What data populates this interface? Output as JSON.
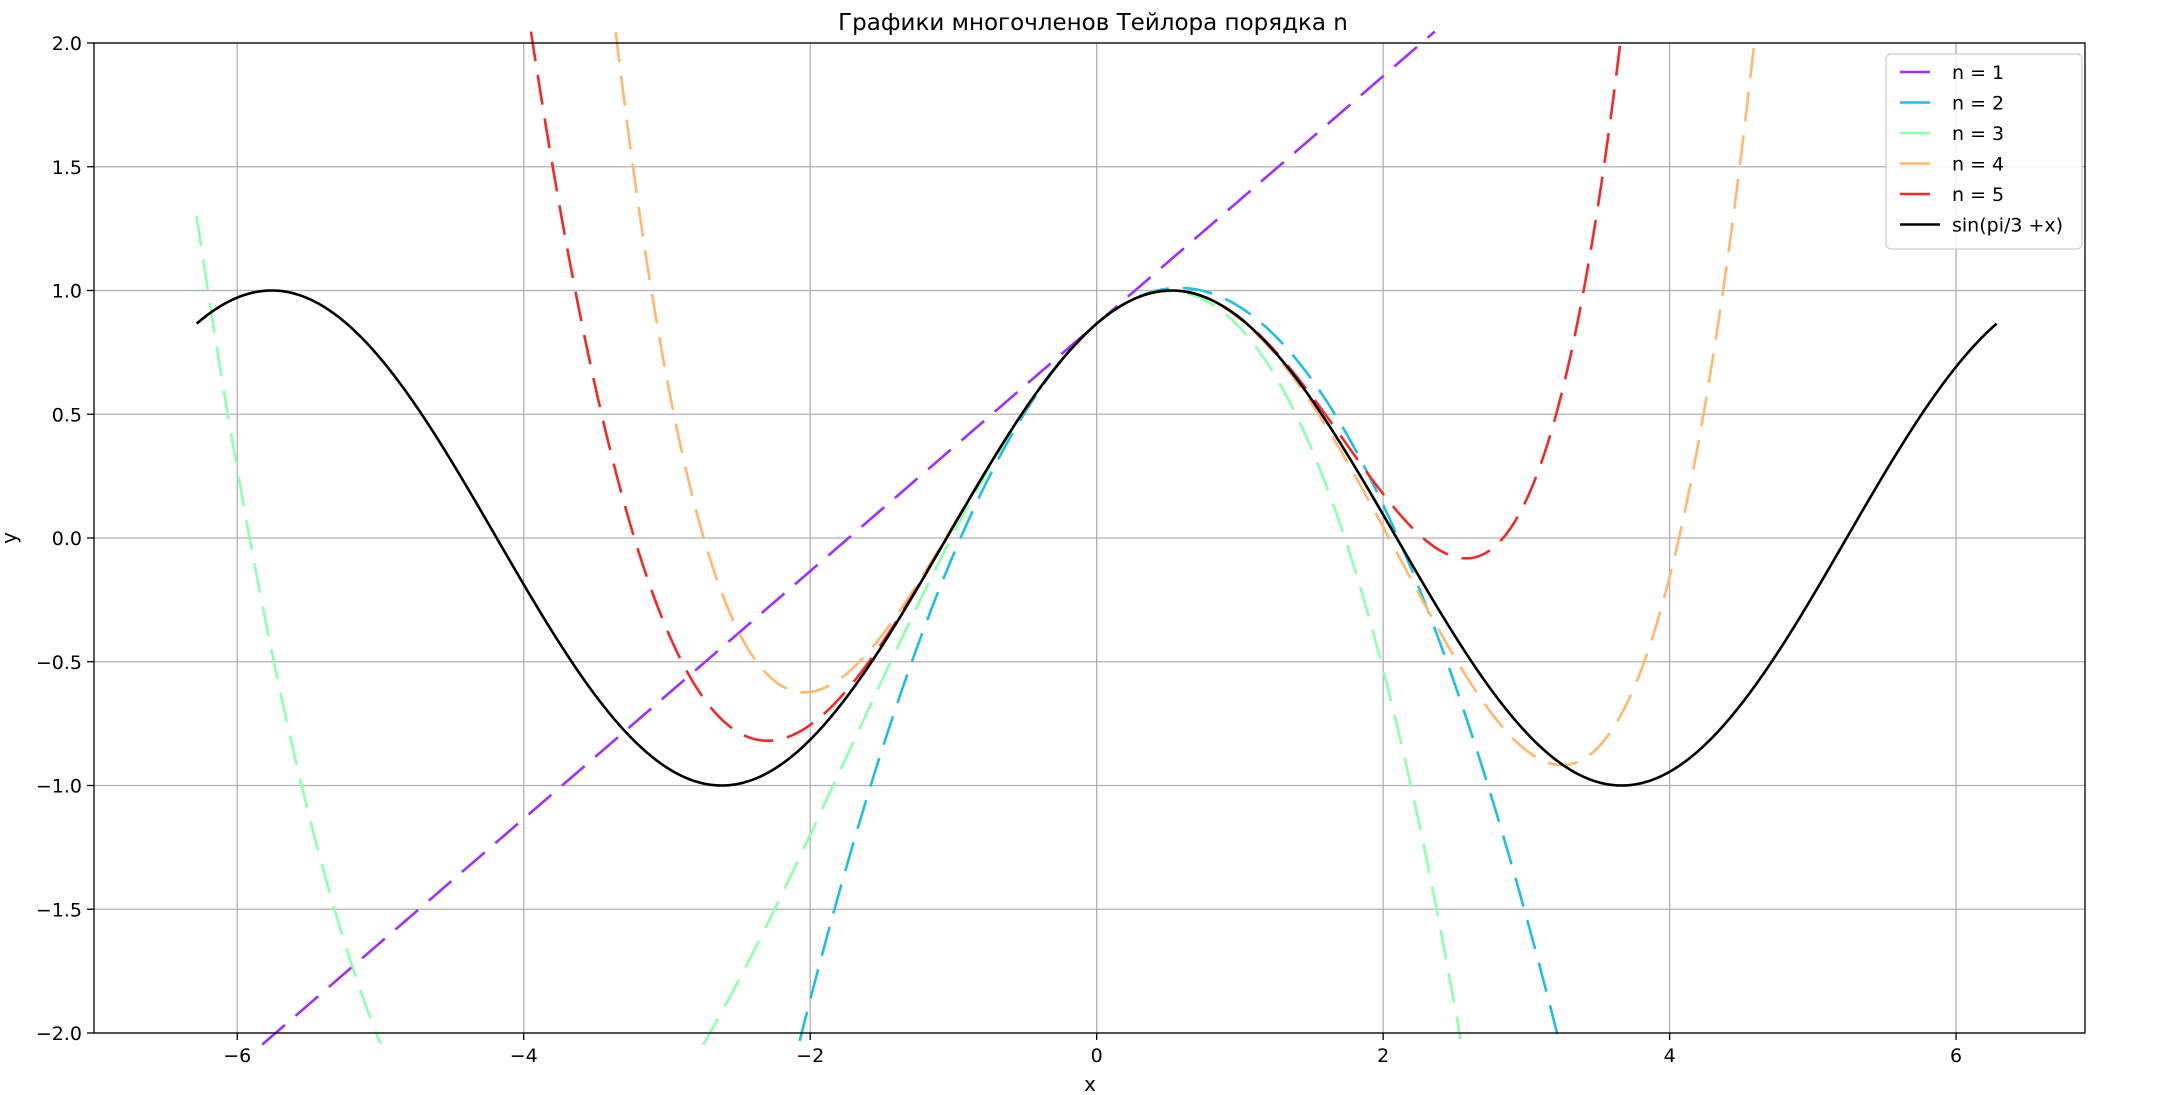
{
  "chart_data": {
    "type": "line",
    "title": "Графики многочленов Тейлора порядка n",
    "xlabel": "x",
    "ylabel": "y",
    "xlim": [
      -7,
      6.9
    ],
    "ylim": [
      -2,
      2
    ],
    "xticks": [
      -6,
      -4,
      -2,
      0,
      2,
      4,
      6
    ],
    "xtick_labels": [
      "−6",
      "−4",
      "−2",
      "0",
      "2",
      "4",
      "6"
    ],
    "yticks": [
      -2.0,
      -1.5,
      -1.0,
      -0.5,
      0.0,
      0.5,
      1.0,
      1.5,
      2.0
    ],
    "ytick_labels": [
      "−2.0",
      "−1.5",
      "−1.0",
      "−0.5",
      "0.0",
      "0.5",
      "1.0",
      "1.5",
      "2.0"
    ],
    "grid": true,
    "legend_position": "top-right",
    "series": [
      {
        "name": "n = 1",
        "color": "#9b30ff",
        "style": "dashed",
        "order": 1
      },
      {
        "name": "n = 2",
        "color": "#1fbfe0",
        "style": "dashed",
        "order": 2
      },
      {
        "name": "n = 3",
        "color": "#8fffb0",
        "style": "dashed",
        "order": 3
      },
      {
        "name": "n = 4",
        "color": "#ffb870",
        "style": "dashed",
        "order": 4
      },
      {
        "name": "n = 5",
        "color": "#f02a2a",
        "style": "dashed",
        "order": 5
      },
      {
        "name": "sin(pi/3 +x)",
        "color": "#000000",
        "style": "solid",
        "order": 0
      }
    ]
  }
}
